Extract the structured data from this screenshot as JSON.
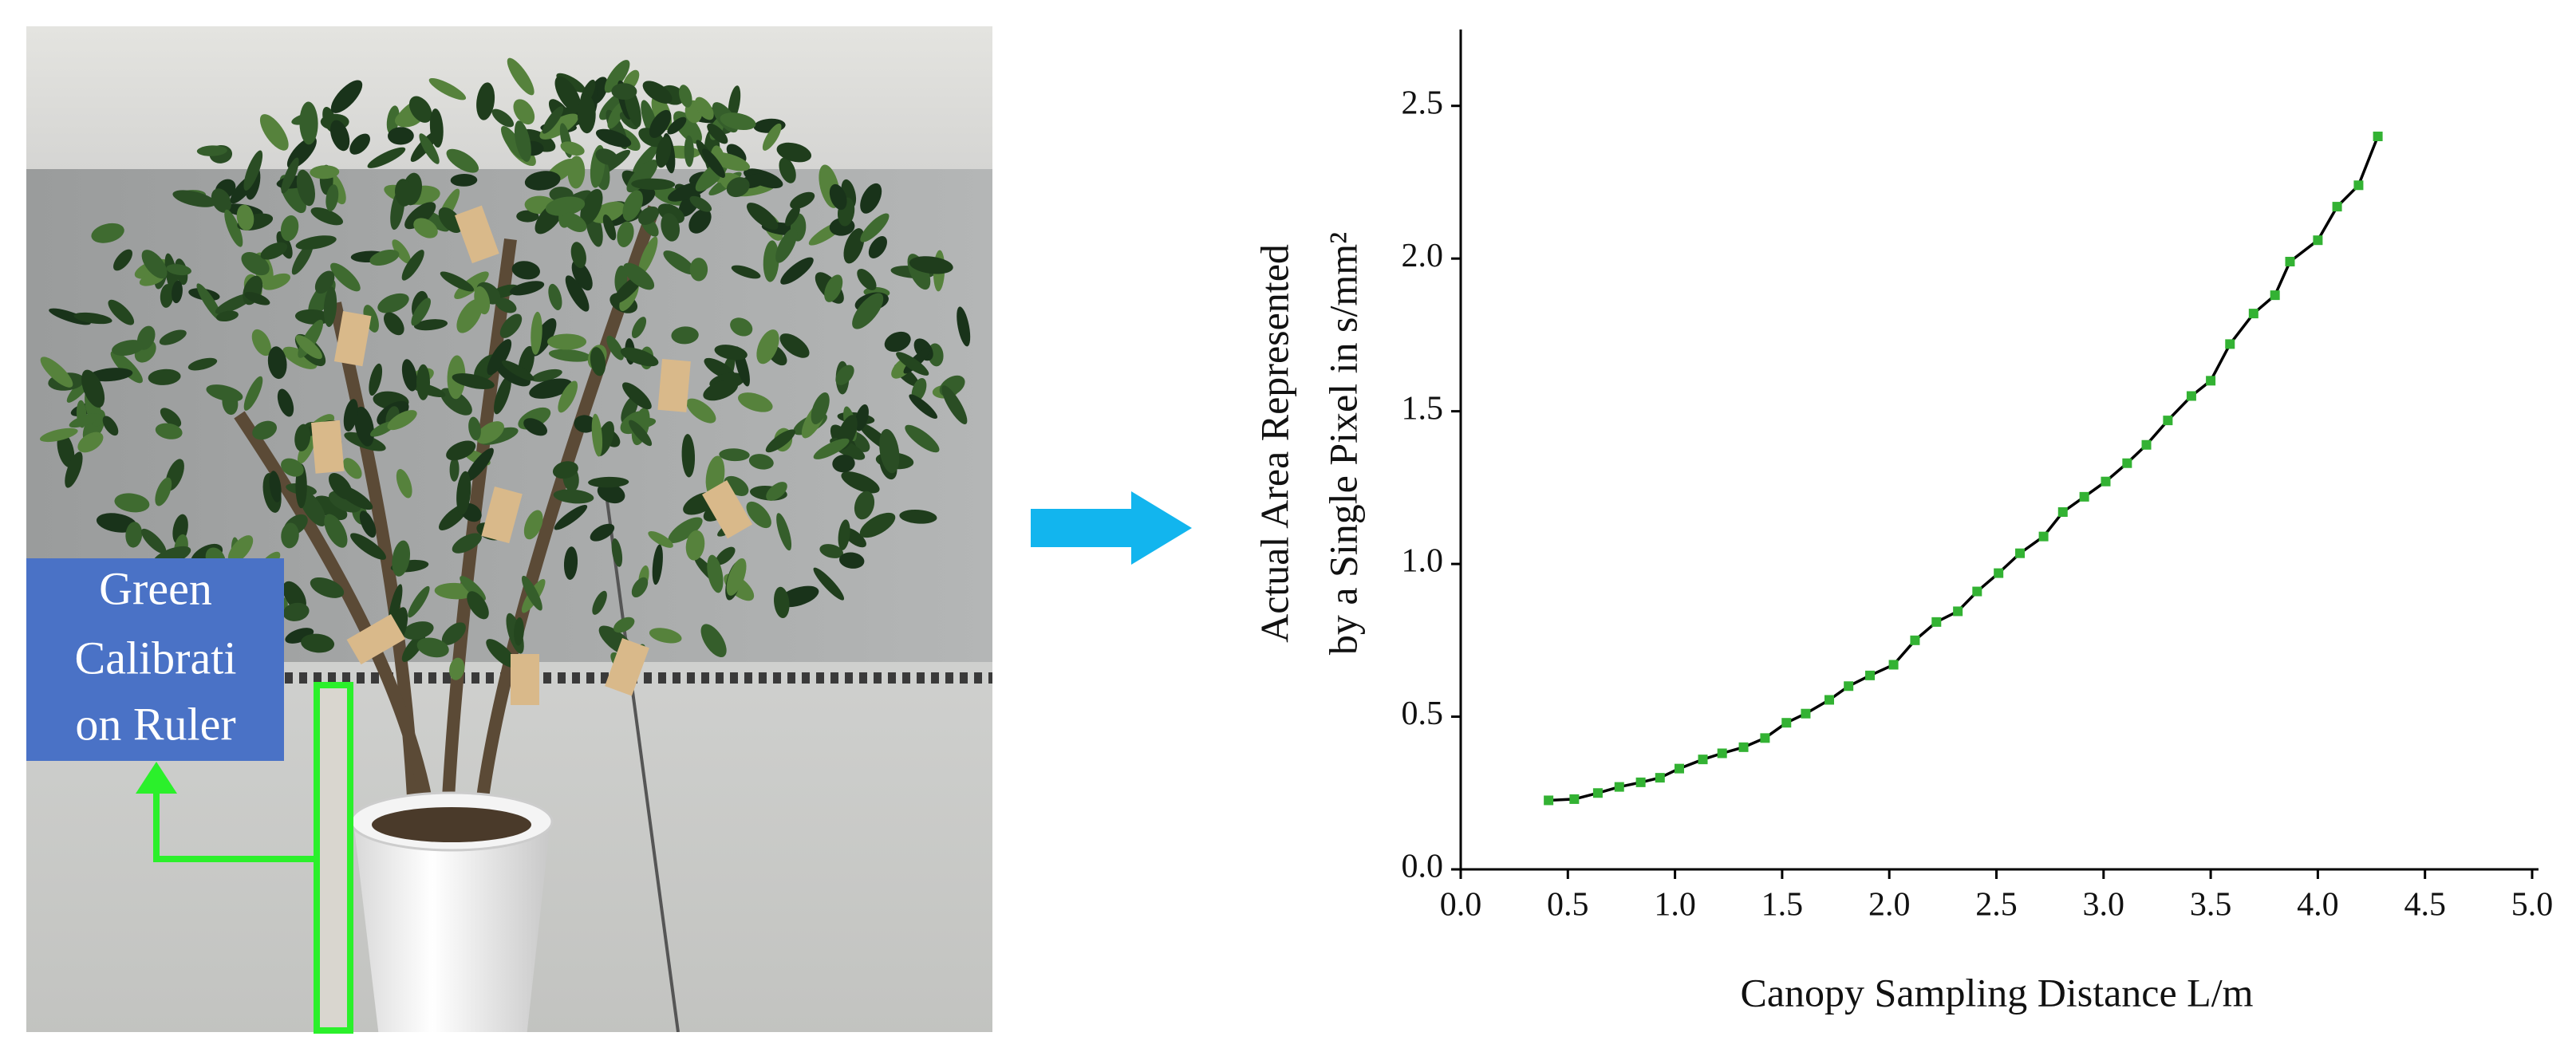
{
  "photo_label": {
    "lines": [
      "Green",
      "Calibrati",
      "on Ruler"
    ]
  },
  "chart_data": {
    "type": "line",
    "x_label": "Canopy Sampling Distance L/m",
    "y_label": [
      "Actual Area Represented",
      "by a Single Pixel in s/mm²"
    ],
    "x": [
      0.41,
      0.53,
      0.64,
      0.74,
      0.84,
      0.93,
      1.02,
      1.13,
      1.22,
      1.32,
      1.42,
      1.52,
      1.61,
      1.72,
      1.81,
      1.91,
      2.02,
      2.12,
      2.22,
      2.32,
      2.41,
      2.51,
      2.61,
      2.72,
      2.81,
      2.91,
      3.01,
      3.11,
      3.2,
      3.3,
      3.41,
      3.5,
      3.59,
      3.7,
      3.8,
      3.87,
      4.0,
      4.09,
      4.19,
      4.28
    ],
    "series": [
      {
        "color": "#33b233",
        "line_color": "#000000",
        "values": [
          0.226,
          0.23,
          0.25,
          0.27,
          0.285,
          0.3,
          0.33,
          0.36,
          0.38,
          0.4,
          0.43,
          0.48,
          0.51,
          0.555,
          0.6,
          0.635,
          0.67,
          0.75,
          0.81,
          0.845,
          0.91,
          0.97,
          1.035,
          1.09,
          1.17,
          1.22,
          1.27,
          1.33,
          1.39,
          1.47,
          1.55,
          1.6,
          1.72,
          1.82,
          1.88,
          1.99,
          2.06,
          2.17,
          2.24,
          2.4
        ]
      }
    ],
    "xlim": [
      0,
      5
    ],
    "ylim": [
      0,
      2.75
    ],
    "xticks": [
      {
        "value": 0,
        "label": "0.0"
      },
      0.5,
      {
        "value": 1,
        "label": "1.0"
      },
      1.5,
      {
        "value": 2,
        "label": "2.0"
      },
      2.5,
      {
        "value": 3,
        "label": "3.0"
      },
      3.5,
      {
        "value": 4,
        "label": "4.0"
      },
      4.5,
      {
        "value": 5,
        "label": "5.0"
      }
    ],
    "yticks": [
      {
        "value": 0,
        "label": "0.0"
      },
      0.5,
      {
        "value": 1,
        "label": "1.0"
      },
      1.5,
      {
        "value": 2,
        "label": "2.0"
      },
      2.5
    ],
    "grid": false
  }
}
